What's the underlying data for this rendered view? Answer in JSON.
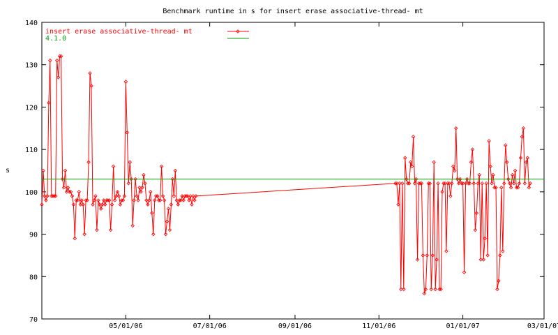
{
  "chart_data": {
    "type": "line",
    "title": "Benchmark runtime in s for insert erase associative-thread-  mt",
    "xlabel": "",
    "ylabel": "s",
    "xlim": [
      "2006-03-01",
      "2007-03-01"
    ],
    "ylim": [
      70,
      140
    ],
    "yticks": [
      70,
      80,
      90,
      100,
      110,
      120,
      130,
      140
    ],
    "xticks": [
      {
        "date": "2006-05-01",
        "label": "05/01/06"
      },
      {
        "date": "2006-07-01",
        "label": "07/01/06"
      },
      {
        "date": "2006-09-01",
        "label": "09/01/06"
      },
      {
        "date": "2006-11-01",
        "label": "11/01/06"
      },
      {
        "date": "2007-01-01",
        "label": "01/01/07"
      },
      {
        "date": "2007-03-01",
        "label": "03/01/07"
      }
    ],
    "grid": false,
    "legend_position": "top-left",
    "series": [
      {
        "name": "insert erase associative-thread-  mt",
        "color": "#ff0000",
        "marker": "diamond",
        "points": [
          [
            "2006-03-01",
            97
          ],
          [
            "2006-03-02",
            105
          ],
          [
            "2006-03-03",
            99
          ],
          [
            "2006-03-04",
            98
          ],
          [
            "2006-03-05",
            99
          ],
          [
            "2006-03-06",
            121
          ],
          [
            "2006-03-07",
            131
          ],
          [
            "2006-03-08",
            99
          ],
          [
            "2006-03-09",
            99
          ],
          [
            "2006-03-10",
            99
          ],
          [
            "2006-03-11",
            99
          ],
          [
            "2006-03-12",
            131
          ],
          [
            "2006-03-13",
            127
          ],
          [
            "2006-03-14",
            132
          ],
          [
            "2006-03-15",
            132
          ],
          [
            "2006-03-16",
            103
          ],
          [
            "2006-03-17",
            101
          ],
          [
            "2006-03-18",
            105
          ],
          [
            "2006-03-19",
            100
          ],
          [
            "2006-03-20",
            101
          ],
          [
            "2006-03-21",
            100
          ],
          [
            "2006-03-22",
            100
          ],
          [
            "2006-03-23",
            99
          ],
          [
            "2006-03-24",
            97
          ],
          [
            "2006-03-25",
            89
          ],
          [
            "2006-03-26",
            98
          ],
          [
            "2006-03-27",
            98
          ],
          [
            "2006-03-28",
            100
          ],
          [
            "2006-03-29",
            97
          ],
          [
            "2006-03-30",
            98
          ],
          [
            "2006-03-31",
            97
          ],
          [
            "2006-04-01",
            90
          ],
          [
            "2006-04-02",
            98
          ],
          [
            "2006-04-03",
            98
          ],
          [
            "2006-04-04",
            107
          ],
          [
            "2006-04-05",
            128
          ],
          [
            "2006-04-06",
            125
          ],
          [
            "2006-04-07",
            97
          ],
          [
            "2006-04-08",
            98
          ],
          [
            "2006-04-09",
            99
          ],
          [
            "2006-04-10",
            91
          ],
          [
            "2006-04-11",
            98
          ],
          [
            "2006-04-12",
            97
          ],
          [
            "2006-04-13",
            96
          ],
          [
            "2006-04-14",
            97
          ],
          [
            "2006-04-15",
            98
          ],
          [
            "2006-04-16",
            97
          ],
          [
            "2006-04-17",
            98
          ],
          [
            "2006-04-18",
            98
          ],
          [
            "2006-04-19",
            98
          ],
          [
            "2006-04-20",
            91
          ],
          [
            "2006-04-21",
            97
          ],
          [
            "2006-04-22",
            106
          ],
          [
            "2006-04-23",
            98
          ],
          [
            "2006-04-24",
            99
          ],
          [
            "2006-04-25",
            100
          ],
          [
            "2006-04-26",
            99
          ],
          [
            "2006-04-27",
            97
          ],
          [
            "2006-04-28",
            98
          ],
          [
            "2006-04-29",
            98
          ],
          [
            "2006-04-30",
            99
          ],
          [
            "2006-05-01",
            126
          ],
          [
            "2006-05-02",
            114
          ],
          [
            "2006-05-03",
            102
          ],
          [
            "2006-05-04",
            107
          ],
          [
            "2006-05-05",
            103
          ],
          [
            "2006-05-06",
            92
          ],
          [
            "2006-05-07",
            98
          ],
          [
            "2006-05-08",
            103
          ],
          [
            "2006-05-09",
            99
          ],
          [
            "2006-05-10",
            98
          ],
          [
            "2006-05-11",
            101
          ],
          [
            "2006-05-12",
            100
          ],
          [
            "2006-05-13",
            101
          ],
          [
            "2006-05-14",
            104
          ],
          [
            "2006-05-15",
            102
          ],
          [
            "2006-05-16",
            98
          ],
          [
            "2006-05-17",
            97
          ],
          [
            "2006-05-18",
            98
          ],
          [
            "2006-05-19",
            100
          ],
          [
            "2006-05-20",
            95
          ],
          [
            "2006-05-21",
            90
          ],
          [
            "2006-05-22",
            98
          ],
          [
            "2006-05-23",
            99
          ],
          [
            "2006-05-24",
            99
          ],
          [
            "2006-05-25",
            98
          ],
          [
            "2006-05-26",
            98
          ],
          [
            "2006-05-27",
            106
          ],
          [
            "2006-05-28",
            99
          ],
          [
            "2006-05-29",
            98
          ],
          [
            "2006-05-30",
            90
          ],
          [
            "2006-05-31",
            93
          ],
          [
            "2006-06-01",
            96
          ],
          [
            "2006-06-02",
            91
          ],
          [
            "2006-06-03",
            97
          ],
          [
            "2006-06-04",
            103
          ],
          [
            "2006-06-05",
            99
          ],
          [
            "2006-06-06",
            105
          ],
          [
            "2006-06-07",
            98
          ],
          [
            "2006-06-08",
            97
          ],
          [
            "2006-06-09",
            98
          ],
          [
            "2006-06-10",
            98
          ],
          [
            "2006-06-11",
            99
          ],
          [
            "2006-06-12",
            98
          ],
          [
            "2006-06-13",
            99
          ],
          [
            "2006-06-14",
            99
          ],
          [
            "2006-06-15",
            99
          ],
          [
            "2006-06-16",
            98
          ],
          [
            "2006-06-17",
            99
          ],
          [
            "2006-06-18",
            97
          ],
          [
            "2006-06-19",
            99
          ],
          [
            "2006-06-20",
            98
          ],
          [
            "2006-06-21",
            99
          ],
          [
            "2006-11-13",
            102
          ],
          [
            "2006-11-14",
            102
          ],
          [
            "2006-11-15",
            97
          ],
          [
            "2006-11-16",
            102
          ],
          [
            "2006-11-17",
            77
          ],
          [
            "2006-11-18",
            102
          ],
          [
            "2006-11-19",
            77
          ],
          [
            "2006-11-20",
            108
          ],
          [
            "2006-11-21",
            103
          ],
          [
            "2006-11-22",
            102
          ],
          [
            "2006-11-23",
            102
          ],
          [
            "2006-11-24",
            107
          ],
          [
            "2006-11-25",
            106
          ],
          [
            "2006-11-26",
            113
          ],
          [
            "2006-11-27",
            102
          ],
          [
            "2006-11-28",
            103
          ],
          [
            "2006-11-29",
            84
          ],
          [
            "2006-11-30",
            102
          ],
          [
            "2006-12-01",
            102
          ],
          [
            "2006-12-02",
            102
          ],
          [
            "2006-12-03",
            85
          ],
          [
            "2006-12-04",
            76
          ],
          [
            "2006-12-05",
            77
          ],
          [
            "2006-12-06",
            85
          ],
          [
            "2006-12-07",
            102
          ],
          [
            "2006-12-08",
            102
          ],
          [
            "2006-12-09",
            77
          ],
          [
            "2006-12-10",
            85
          ],
          [
            "2006-12-11",
            107
          ],
          [
            "2006-12-12",
            77
          ],
          [
            "2006-12-13",
            84
          ],
          [
            "2006-12-14",
            102
          ],
          [
            "2006-12-15",
            77
          ],
          [
            "2006-12-16",
            77
          ],
          [
            "2006-12-17",
            100
          ],
          [
            "2006-12-18",
            102
          ],
          [
            "2006-12-19",
            102
          ],
          [
            "2006-12-20",
            86
          ],
          [
            "2006-12-21",
            102
          ],
          [
            "2006-12-22",
            102
          ],
          [
            "2006-12-23",
            99
          ],
          [
            "2006-12-24",
            102
          ],
          [
            "2006-12-25",
            106
          ],
          [
            "2006-12-26",
            105
          ],
          [
            "2006-12-27",
            115
          ],
          [
            "2006-12-28",
            103
          ],
          [
            "2006-12-29",
            102
          ],
          [
            "2006-12-30",
            103
          ],
          [
            "2006-12-31",
            102
          ],
          [
            "2007-01-01",
            102
          ],
          [
            "2007-01-02",
            81
          ],
          [
            "2007-01-03",
            102
          ],
          [
            "2007-01-04",
            103
          ],
          [
            "2007-01-05",
            102
          ],
          [
            "2007-01-06",
            102
          ],
          [
            "2007-01-07",
            107
          ],
          [
            "2007-01-08",
            110
          ],
          [
            "2007-01-09",
            102
          ],
          [
            "2007-01-10",
            91
          ],
          [
            "2007-01-11",
            95
          ],
          [
            "2007-01-12",
            102
          ],
          [
            "2007-01-13",
            104
          ],
          [
            "2007-01-14",
            84
          ],
          [
            "2007-01-15",
            102
          ],
          [
            "2007-01-16",
            84
          ],
          [
            "2007-01-17",
            89
          ],
          [
            "2007-01-18",
            102
          ],
          [
            "2007-01-19",
            85
          ],
          [
            "2007-01-20",
            112
          ],
          [
            "2007-01-21",
            106
          ],
          [
            "2007-01-22",
            102
          ],
          [
            "2007-01-23",
            104
          ],
          [
            "2007-01-24",
            101
          ],
          [
            "2007-01-25",
            101
          ],
          [
            "2007-01-26",
            77
          ],
          [
            "2007-01-27",
            79
          ],
          [
            "2007-01-28",
            85
          ],
          [
            "2007-01-29",
            101
          ],
          [
            "2007-01-30",
            86
          ],
          [
            "2007-01-31",
            102
          ],
          [
            "2007-02-01",
            111
          ],
          [
            "2007-02-02",
            107
          ],
          [
            "2007-02-03",
            103
          ],
          [
            "2007-02-04",
            102
          ],
          [
            "2007-02-05",
            101
          ],
          [
            "2007-02-06",
            104
          ],
          [
            "2007-02-07",
            102
          ],
          [
            "2007-02-08",
            105
          ],
          [
            "2007-02-09",
            101
          ],
          [
            "2007-02-10",
            101
          ],
          [
            "2007-02-11",
            102
          ],
          [
            "2007-02-12",
            108
          ],
          [
            "2007-02-13",
            113
          ],
          [
            "2007-02-14",
            115
          ],
          [
            "2007-02-15",
            102
          ],
          [
            "2007-02-16",
            107
          ],
          [
            "2007-02-17",
            108
          ],
          [
            "2007-02-18",
            101
          ],
          [
            "2007-02-19",
            102
          ]
        ]
      },
      {
        "name": "4.1.0",
        "color": "#00a000",
        "marker": "none",
        "constant": 103
      }
    ]
  }
}
